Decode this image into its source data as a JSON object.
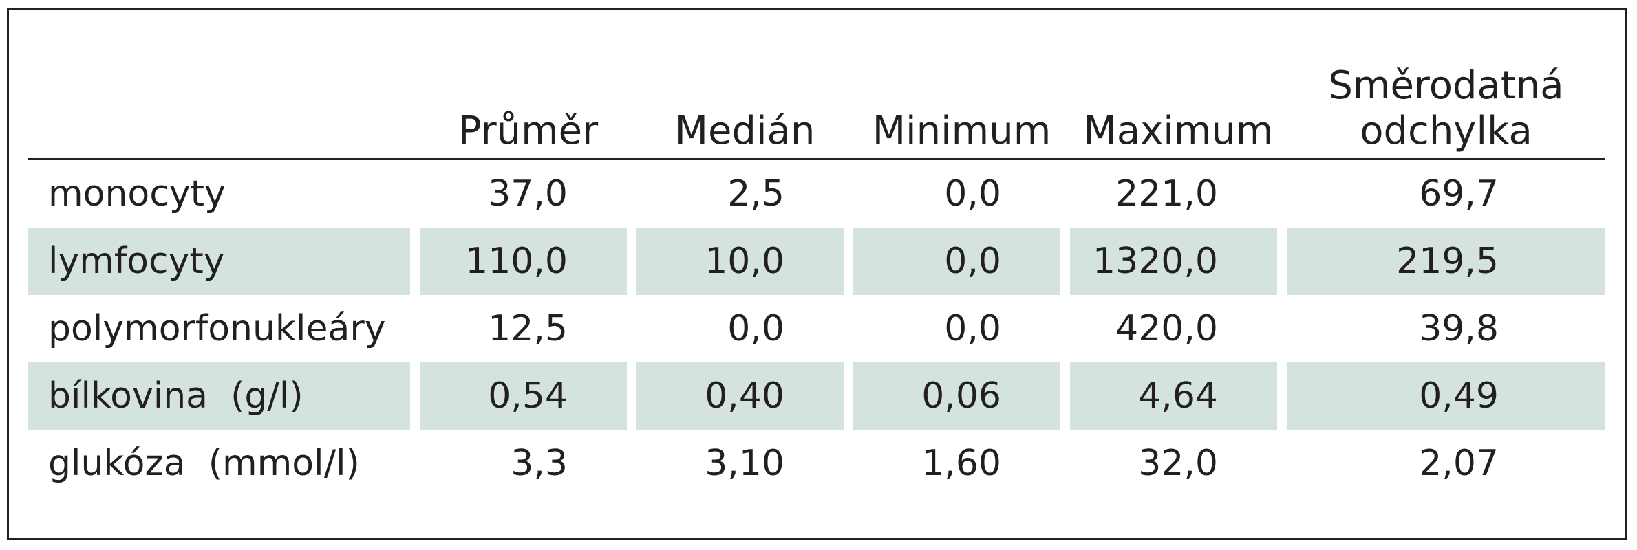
{
  "table": {
    "headers": [
      "",
      "Průměr",
      "Medián",
      "Minimum",
      "Maximum",
      "Směrodatná odchylka"
    ],
    "header_last_line1": "Směrodatná",
    "header_last_line2": "odchylka",
    "rows": [
      {
        "label": "monocyty",
        "values": [
          "37,0",
          "2,5",
          "0,0",
          "221,0",
          "69,7"
        ],
        "shaded": false
      },
      {
        "label": "lymfocyty",
        "values": [
          "110,0",
          "10,0",
          "0,0",
          "1320,0",
          "219,5"
        ],
        "shaded": true
      },
      {
        "label": "polymorfonukleáry",
        "values": [
          "12,5",
          "0,0",
          "0,0",
          "420,0",
          "39,8"
        ],
        "shaded": false
      },
      {
        "label": "bílkovina  (g/l)",
        "values": [
          "0,54",
          "0,40",
          "0,06",
          "4,64",
          "0,49"
        ],
        "shaded": true
      },
      {
        "label": "glukóza  (mmol/l)",
        "values": [
          "3,3",
          "3,10",
          "1,60",
          "32,0",
          "2,07"
        ],
        "shaded": false
      }
    ]
  },
  "colors": {
    "shading": "#d4e3e0",
    "text": "#231f20",
    "border": "#231f20"
  }
}
